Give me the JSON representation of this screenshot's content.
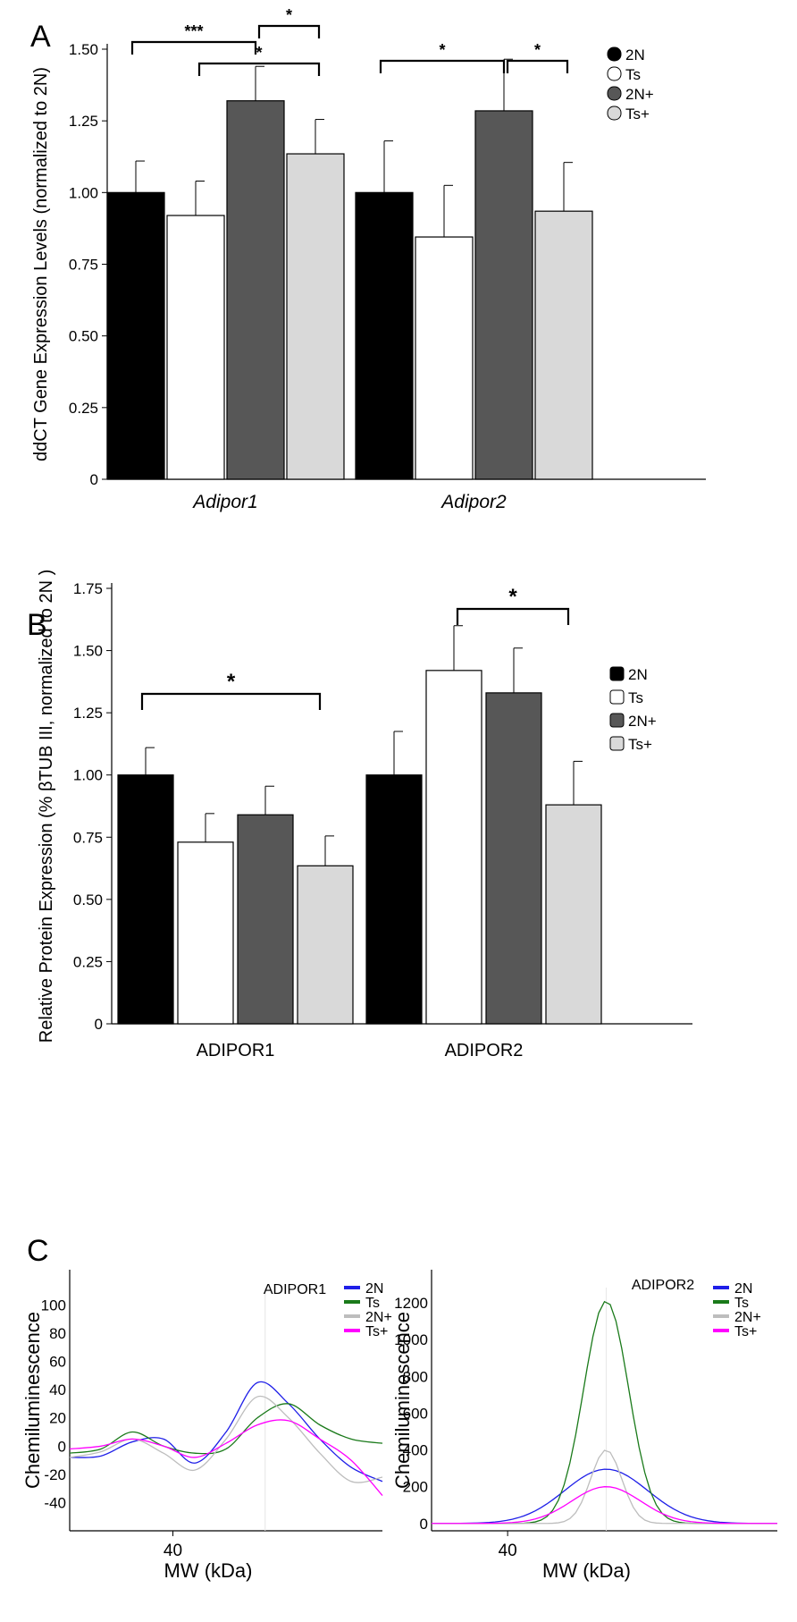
{
  "panel_labels": [
    "A",
    "B",
    "C"
  ],
  "legend_bars": [
    "2N",
    "Ts",
    "2N+",
    "Ts+"
  ],
  "legend_lines": [
    "2N",
    "Ts",
    "2N+",
    "Ts+"
  ],
  "colors": {
    "bar_2N": "#000000",
    "bar_Ts": "#ffffff",
    "bar_2Nplus": "#575757",
    "bar_Tsplus": "#d9d9d9",
    "line_2N": "#1f1fe8",
    "line_Ts": "#1a7a1a",
    "line_2Nplus": "#bdbdbd",
    "line_Tsplus": "#ff00ff"
  },
  "chart_data": [
    {
      "type": "bar",
      "panel": "A",
      "ylabel": "ddCT  Gene Expression Levels (normalized to 2N)",
      "categories": [
        "Adipor1",
        "Adipor2"
      ],
      "ylim": [
        0,
        1.5
      ],
      "yticks": [
        "0",
        "0.25",
        "0.50",
        "0.75",
        "1.00",
        "1.25",
        "1.50"
      ],
      "series": [
        {
          "name": "2N",
          "values": [
            1.0,
            1.0
          ],
          "errors": [
            0.11,
            0.18
          ]
        },
        {
          "name": "Ts",
          "values": [
            0.92,
            0.845
          ],
          "errors": [
            0.12,
            0.18
          ]
        },
        {
          "name": "2N+",
          "values": [
            1.32,
            1.285
          ],
          "errors": [
            0.12,
            0.18
          ]
        },
        {
          "name": "Ts+",
          "values": [
            1.135,
            0.935
          ],
          "errors": [
            0.12,
            0.17
          ]
        }
      ],
      "significance": [
        {
          "group": 0,
          "from": 0,
          "to": 2,
          "label": "***"
        },
        {
          "group": 0,
          "from": 2,
          "to": 3,
          "label": "*"
        },
        {
          "group": 0,
          "from": 1,
          "to": 3,
          "label": "*"
        },
        {
          "group": 1,
          "from": 0,
          "to": 2,
          "label": "*"
        },
        {
          "group": 1,
          "from": 2,
          "to": 3,
          "label": "*"
        }
      ]
    },
    {
      "type": "bar",
      "panel": "B",
      "ylabel": "Relative Protein Expression (% βTUB III, normalized to 2N )",
      "categories": [
        "ADIPOR1",
        "ADIPOR2"
      ],
      "ylim": [
        0,
        1.75
      ],
      "yticks": [
        "0",
        "0.25",
        "0.50",
        "0.75",
        "1.00",
        "1.25",
        "1.50",
        "1.75"
      ],
      "series": [
        {
          "name": "2N",
          "values": [
            1.0,
            1.0
          ],
          "errors": [
            0.11,
            0.175
          ]
        },
        {
          "name": "Ts",
          "values": [
            0.73,
            1.42
          ],
          "errors": [
            0.115,
            0.18
          ]
        },
        {
          "name": "2N+",
          "values": [
            0.84,
            1.33
          ],
          "errors": [
            0.115,
            0.18
          ]
        },
        {
          "name": "Ts+",
          "values": [
            0.635,
            0.88
          ],
          "errors": [
            0.12,
            0.175
          ]
        }
      ],
      "significance": [
        {
          "group": 0,
          "from": 0,
          "to": 3,
          "label": "*"
        },
        {
          "group": 1,
          "from": 1,
          "to": 3,
          "label": "*"
        }
      ]
    },
    {
      "type": "line",
      "panel": "C-left",
      "title": "ADIPOR1",
      "ylabel": "Chemiluminescence",
      "xlabel": "MW (kDa)",
      "xtick": "40",
      "ylim": [
        -60,
        125
      ],
      "yticks": [
        "-40",
        "-20",
        "0",
        "20",
        "40",
        "60",
        "80",
        "100"
      ],
      "ytick_values": [
        -40,
        -20,
        0,
        20,
        40,
        60,
        80,
        100
      ],
      "x": [
        0,
        0.1,
        0.2,
        0.3,
        0.4,
        0.5,
        0.6,
        0.7,
        0.8,
        0.9,
        1.0
      ],
      "series": [
        {
          "name": "2N",
          "values": [
            -8,
            -7,
            3,
            5,
            -12,
            10,
            45,
            30,
            5,
            -15,
            -25
          ]
        },
        {
          "name": "Ts",
          "values": [
            -5,
            -2,
            10,
            0,
            -5,
            -2,
            20,
            30,
            15,
            5,
            2
          ]
        },
        {
          "name": "2N+",
          "values": [
            -8,
            -4,
            5,
            -5,
            -17,
            5,
            35,
            20,
            -5,
            -25,
            -22
          ]
        },
        {
          "name": "Ts+",
          "values": [
            -2,
            0,
            5,
            0,
            -8,
            2,
            15,
            18,
            5,
            -10,
            -35
          ]
        }
      ]
    },
    {
      "type": "line",
      "panel": "C-right",
      "title": "ADIPOR2",
      "ylabel": "Chemiluminescence",
      "xlabel": "MW (kDa)",
      "xtick": "40",
      "ylim": [
        -40,
        1380
      ],
      "yticks": [
        "0",
        "200",
        "400",
        "600",
        "800",
        "1000",
        "1200"
      ],
      "ytick_values": [
        0,
        200,
        400,
        600,
        800,
        1000,
        1200
      ],
      "x": [
        0,
        0.1,
        0.2,
        0.3,
        0.4,
        0.5,
        0.6,
        0.7,
        0.8,
        0.9,
        1.0
      ],
      "series": [
        {
          "name": "2N",
          "peak": 295,
          "width": 0.12
        },
        {
          "name": "Ts",
          "peak": 1210,
          "width": 0.065
        },
        {
          "name": "2N+",
          "peak": 400,
          "width": 0.045
        },
        {
          "name": "Ts+",
          "peak": 200,
          "width": 0.1
        }
      ]
    }
  ]
}
